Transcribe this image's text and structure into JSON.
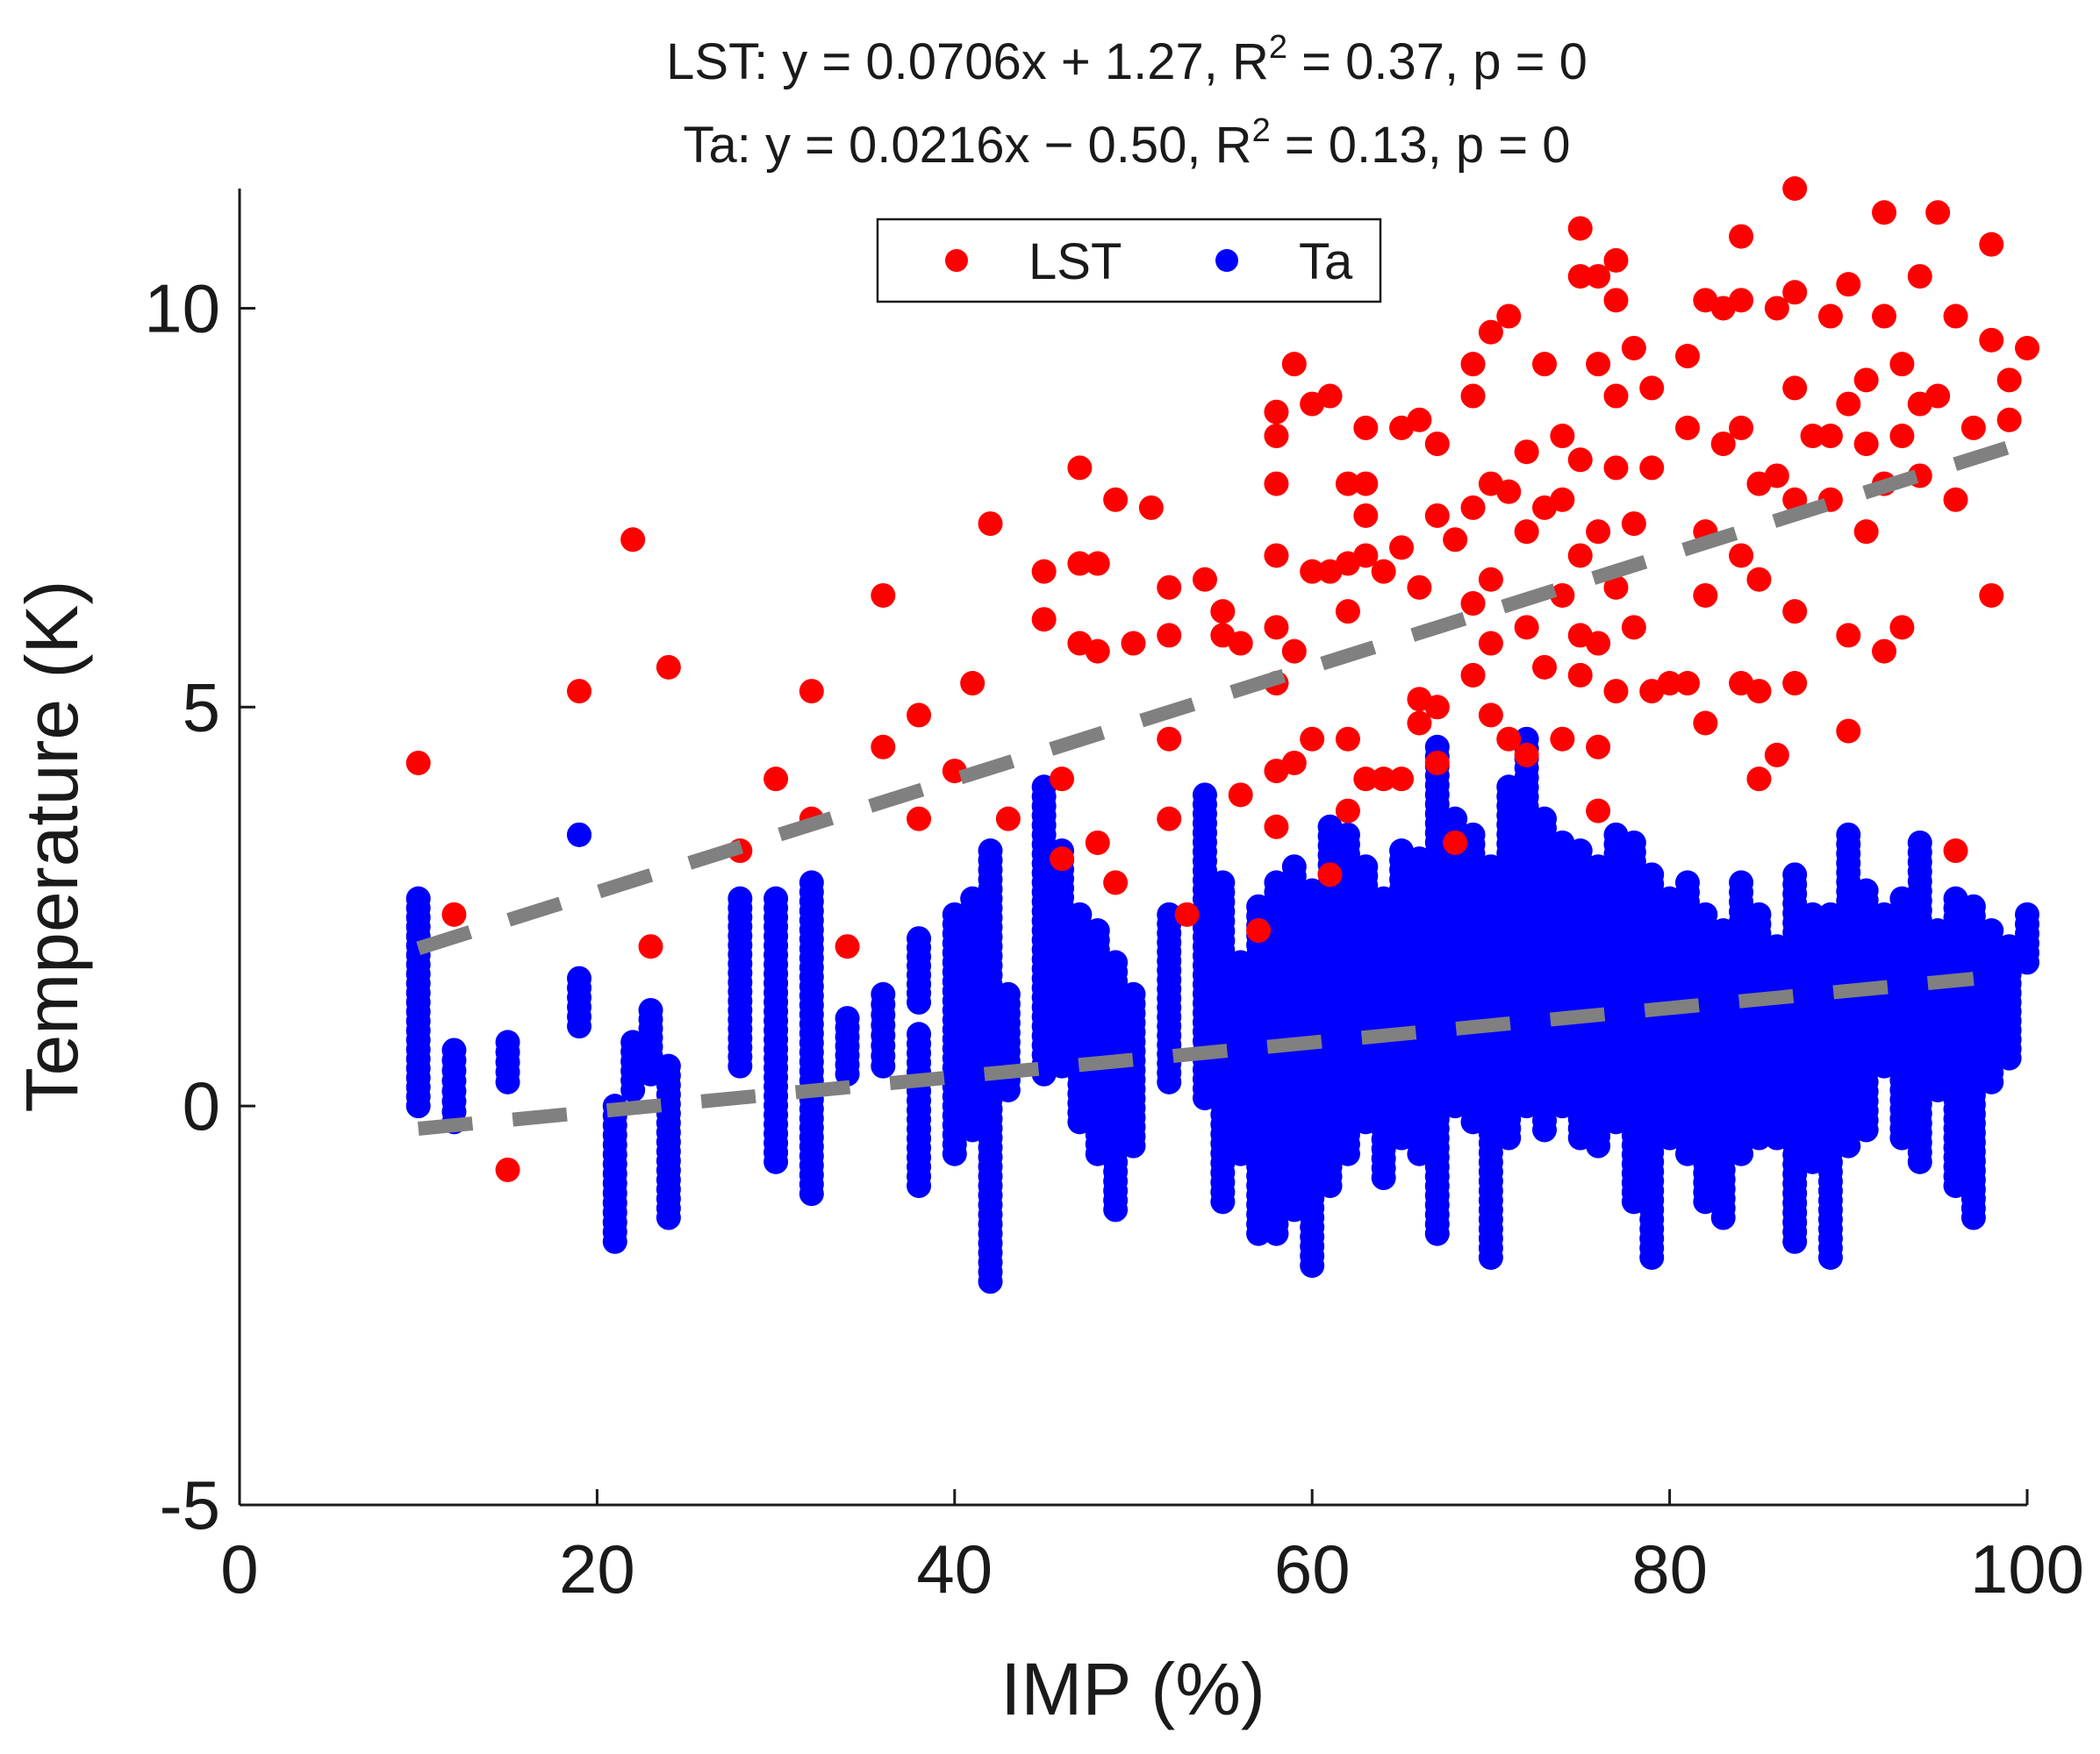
{
  "chart_data": {
    "type": "scatter",
    "title": [
      {
        "prefix": "LST: y = 0.0706x + 1.27, R",
        "sup": "2",
        "suffix": " = 0.37, p = 0"
      },
      {
        "prefix": "Ta: y = 0.0216x − 0.50, R",
        "sup": "2",
        "suffix": " = 0.13, p = 0"
      }
    ],
    "xlabel": "IMP (%)",
    "ylabel": "Temperature (K)",
    "xlim": [
      0,
      100
    ],
    "ylim": [
      -5,
      11.5
    ],
    "xticks": [
      0,
      20,
      40,
      60,
      80,
      100
    ],
    "xtick_labels": [
      "0",
      "20",
      "40",
      "60",
      "80",
      "100"
    ],
    "yticks": [
      -5,
      0,
      5,
      10
    ],
    "ytick_labels": [
      "-5",
      "0",
      "5",
      "10"
    ],
    "legend_position": "top-center",
    "series": [
      {
        "name": "LST",
        "color": "#ff0000",
        "points": [
          [
            10,
            4.3
          ],
          [
            12,
            2.4
          ],
          [
            15,
            -0.8
          ],
          [
            19,
            5.2
          ],
          [
            22,
            7.1
          ],
          [
            23,
            2.0
          ],
          [
            24,
            5.5
          ],
          [
            28,
            3.2
          ],
          [
            30,
            4.1
          ],
          [
            32,
            5.2
          ],
          [
            32,
            3.6
          ],
          [
            34,
            2.0
          ],
          [
            36,
            6.4
          ],
          [
            36,
            4.5
          ],
          [
            38,
            4.9
          ],
          [
            38,
            3.6
          ],
          [
            40,
            4.2
          ],
          [
            41,
            5.3
          ],
          [
            42,
            7.3
          ],
          [
            43,
            3.6
          ],
          [
            45,
            6.7
          ],
          [
            45,
            6.1
          ],
          [
            46,
            4.1
          ],
          [
            46,
            3.1
          ],
          [
            47,
            8.0
          ],
          [
            47,
            5.8
          ],
          [
            47,
            6.8
          ],
          [
            48,
            6.8
          ],
          [
            48,
            5.7
          ],
          [
            48,
            3.3
          ],
          [
            49,
            7.6
          ],
          [
            49,
            2.8
          ],
          [
            50,
            5.8
          ],
          [
            51,
            7.5
          ],
          [
            52,
            6.5
          ],
          [
            52,
            5.9
          ],
          [
            52,
            4.6
          ],
          [
            52,
            3.6
          ],
          [
            53,
            2.4
          ],
          [
            54,
            6.6
          ],
          [
            55,
            6.2
          ],
          [
            55,
            5.9
          ],
          [
            56,
            5.8
          ],
          [
            56,
            3.9
          ],
          [
            57,
            2.2
          ],
          [
            58,
            8.7
          ],
          [
            58,
            8.4
          ],
          [
            58,
            7.8
          ],
          [
            58,
            6.9
          ],
          [
            58,
            6.0
          ],
          [
            58,
            5.3
          ],
          [
            58,
            4.2
          ],
          [
            58,
            3.5
          ],
          [
            59,
            9.3
          ],
          [
            59,
            5.7
          ],
          [
            59,
            4.3
          ],
          [
            60,
            8.8
          ],
          [
            60,
            6.7
          ],
          [
            60,
            4.6
          ],
          [
            61,
            8.9
          ],
          [
            61,
            6.7
          ],
          [
            61,
            2.9
          ],
          [
            62,
            7.8
          ],
          [
            62,
            6.8
          ],
          [
            62,
            6.2
          ],
          [
            62,
            4.6
          ],
          [
            62,
            3.7
          ],
          [
            63,
            8.5
          ],
          [
            63,
            7.8
          ],
          [
            63,
            7.4
          ],
          [
            63,
            6.9
          ],
          [
            63,
            4.1
          ],
          [
            64,
            6.7
          ],
          [
            64,
            4.1
          ],
          [
            65,
            8.5
          ],
          [
            65,
            7.0
          ],
          [
            65,
            4.1
          ],
          [
            66,
            8.6
          ],
          [
            66,
            6.5
          ],
          [
            66,
            5.1
          ],
          [
            66,
            4.8
          ],
          [
            67,
            8.3
          ],
          [
            67,
            7.4
          ],
          [
            67,
            5.0
          ],
          [
            67,
            4.3
          ],
          [
            68,
            7.1
          ],
          [
            68,
            3.3
          ],
          [
            69,
            9.3
          ],
          [
            69,
            8.9
          ],
          [
            69,
            7.5
          ],
          [
            69,
            6.3
          ],
          [
            69,
            5.4
          ],
          [
            70,
            9.7
          ],
          [
            70,
            7.8
          ],
          [
            70,
            6.6
          ],
          [
            70,
            5.8
          ],
          [
            70,
            4.9
          ],
          [
            71,
            9.9
          ],
          [
            71,
            7.7
          ],
          [
            71,
            4.6
          ],
          [
            72,
            8.2
          ],
          [
            72,
            7.2
          ],
          [
            72,
            6.0
          ],
          [
            72,
            4.4
          ],
          [
            73,
            9.3
          ],
          [
            73,
            7.5
          ],
          [
            73,
            5.5
          ],
          [
            74,
            8.4
          ],
          [
            74,
            7.6
          ],
          [
            74,
            6.4
          ],
          [
            74,
            4.6
          ],
          [
            75,
            11.0
          ],
          [
            75,
            10.4
          ],
          [
            75,
            8.1
          ],
          [
            75,
            6.9
          ],
          [
            75,
            5.9
          ],
          [
            75,
            5.4
          ],
          [
            76,
            10.4
          ],
          [
            76,
            9.3
          ],
          [
            76,
            7.2
          ],
          [
            76,
            5.8
          ],
          [
            76,
            4.5
          ],
          [
            76,
            3.7
          ],
          [
            77,
            10.6
          ],
          [
            77,
            10.1
          ],
          [
            77,
            8.9
          ],
          [
            77,
            8.0
          ],
          [
            77,
            6.5
          ],
          [
            77,
            5.2
          ],
          [
            78,
            9.5
          ],
          [
            78,
            7.3
          ],
          [
            78,
            6.0
          ],
          [
            79,
            9.0
          ],
          [
            79,
            8.0
          ],
          [
            79,
            5.2
          ],
          [
            80,
            5.3
          ],
          [
            81,
            9.4
          ],
          [
            81,
            8.5
          ],
          [
            81,
            5.3
          ],
          [
            82,
            10.1
          ],
          [
            82,
            7.2
          ],
          [
            82,
            6.4
          ],
          [
            82,
            4.8
          ],
          [
            83,
            10.0
          ],
          [
            83,
            8.3
          ],
          [
            84,
            10.9
          ],
          [
            84,
            10.1
          ],
          [
            84,
            8.5
          ],
          [
            84,
            6.9
          ],
          [
            84,
            5.3
          ],
          [
            85,
            7.8
          ],
          [
            85,
            6.6
          ],
          [
            85,
            5.2
          ],
          [
            85,
            4.1
          ],
          [
            86,
            10.0
          ],
          [
            86,
            7.9
          ],
          [
            86,
            4.4
          ],
          [
            87,
            11.5
          ],
          [
            87,
            10.2
          ],
          [
            87,
            9.0
          ],
          [
            87,
            7.6
          ],
          [
            87,
            6.2
          ],
          [
            87,
            5.3
          ],
          [
            88,
            8.4
          ],
          [
            89,
            9.9
          ],
          [
            89,
            8.4
          ],
          [
            89,
            7.6
          ],
          [
            90,
            10.3
          ],
          [
            90,
            8.8
          ],
          [
            90,
            5.9
          ],
          [
            90,
            4.7
          ],
          [
            91,
            9.1
          ],
          [
            91,
            8.3
          ],
          [
            91,
            7.2
          ],
          [
            92,
            11.2
          ],
          [
            92,
            9.9
          ],
          [
            92,
            7.8
          ],
          [
            92,
            5.7
          ],
          [
            93,
            9.3
          ],
          [
            93,
            8.4
          ],
          [
            93,
            6.0
          ],
          [
            94,
            10.4
          ],
          [
            94,
            8.8
          ],
          [
            94,
            7.9
          ],
          [
            95,
            11.2
          ],
          [
            95,
            8.9
          ],
          [
            96,
            9.9
          ],
          [
            96,
            7.6
          ],
          [
            96,
            3.2
          ],
          [
            97,
            8.5
          ],
          [
            98,
            10.8
          ],
          [
            98,
            9.6
          ],
          [
            98,
            6.4
          ],
          [
            99,
            9.1
          ],
          [
            99,
            8.6
          ],
          [
            100,
            9.5
          ]
        ]
      },
      {
        "name": "Ta",
        "color": "#0000ff",
        "point_columns": [
          [
            10,
            0.0,
            2.6
          ],
          [
            12,
            -0.2,
            0.7
          ],
          [
            15,
            0.3,
            0.8
          ],
          [
            19,
            1.0,
            1.6
          ],
          [
            19,
            3.4,
            3.4
          ],
          [
            21,
            -1.7,
            0.0
          ],
          [
            22,
            0.2,
            0.8
          ],
          [
            23,
            0.4,
            1.2
          ],
          [
            24,
            -1.4,
            0.5
          ],
          [
            28,
            0.5,
            2.6
          ],
          [
            30,
            -0.7,
            2.6
          ],
          [
            32,
            -1.1,
            2.8
          ],
          [
            34,
            0.4,
            1.1
          ],
          [
            36,
            0.5,
            1.4
          ],
          [
            38,
            -1.0,
            0.9
          ],
          [
            38,
            1.3,
            2.1
          ],
          [
            40,
            -0.6,
            2.4
          ],
          [
            41,
            -0.3,
            2.6
          ],
          [
            42,
            -2.2,
            3.2
          ],
          [
            43,
            0.2,
            1.4
          ],
          [
            45,
            0.4,
            4.0
          ],
          [
            46,
            0.5,
            3.2
          ],
          [
            47,
            -0.2,
            2.4
          ],
          [
            48,
            -0.6,
            2.2
          ],
          [
            49,
            -1.3,
            1.8
          ],
          [
            50,
            -0.5,
            1.4
          ],
          [
            52,
            0.3,
            2.4
          ],
          [
            54,
            0.1,
            3.9
          ],
          [
            55,
            -1.2,
            2.8
          ],
          [
            56,
            -0.6,
            1.8
          ],
          [
            57,
            -1.6,
            2.5
          ],
          [
            58,
            -1.6,
            2.8
          ],
          [
            59,
            -1.3,
            3.0
          ],
          [
            60,
            -2.0,
            2.7
          ],
          [
            61,
            -1.0,
            3.5
          ],
          [
            62,
            -0.6,
            3.4
          ],
          [
            63,
            -0.2,
            3.0
          ],
          [
            64,
            -0.9,
            2.6
          ],
          [
            65,
            -0.4,
            3.2
          ],
          [
            66,
            -0.6,
            3.1
          ],
          [
            67,
            -1.6,
            4.5
          ],
          [
            68,
            0.0,
            3.6
          ],
          [
            69,
            -0.2,
            3.4
          ],
          [
            70,
            -1.9,
            3.0
          ],
          [
            71,
            -0.4,
            4.0
          ],
          [
            72,
            0.0,
            4.6
          ],
          [
            73,
            -0.3,
            3.6
          ],
          [
            74,
            0.0,
            3.3
          ],
          [
            75,
            -0.4,
            3.2
          ],
          [
            76,
            -0.5,
            3.0
          ],
          [
            77,
            -0.2,
            3.4
          ],
          [
            78,
            -1.2,
            3.3
          ],
          [
            79,
            -1.9,
            2.9
          ],
          [
            80,
            -0.4,
            2.6
          ],
          [
            81,
            -0.6,
            2.8
          ],
          [
            82,
            -1.2,
            2.4
          ],
          [
            83,
            -1.4,
            2.2
          ],
          [
            84,
            -0.6,
            2.8
          ],
          [
            85,
            -0.4,
            2.4
          ],
          [
            86,
            -0.4,
            2.0
          ],
          [
            87,
            -1.7,
            2.9
          ],
          [
            88,
            -0.7,
            2.4
          ],
          [
            89,
            -1.9,
            2.4
          ],
          [
            90,
            -0.5,
            3.4
          ],
          [
            91,
            -0.3,
            2.7
          ],
          [
            92,
            0.5,
            2.4
          ],
          [
            93,
            -0.4,
            2.6
          ],
          [
            94,
            -0.7,
            3.3
          ],
          [
            95,
            0.2,
            2.2
          ],
          [
            96,
            -1.0,
            2.6
          ],
          [
            97,
            -1.4,
            2.5
          ],
          [
            98,
            0.3,
            2.2
          ],
          [
            99,
            0.6,
            2.0
          ],
          [
            100,
            1.8,
            2.4
          ]
        ]
      }
    ],
    "fit_lines": [
      {
        "name": "LST fit",
        "slope": 0.0706,
        "intercept": 1.27,
        "x_range": [
          10,
          100
        ],
        "color": "#808080",
        "style": "dashed"
      },
      {
        "name": "Ta fit",
        "slope": 0.0216,
        "intercept": -0.5,
        "x_range": [
          10,
          97
        ],
        "color": "#808080",
        "style": "dashed"
      }
    ],
    "legend": [
      {
        "label": "LST",
        "color": "#ff0000"
      },
      {
        "label": "Ta",
        "color": "#0000ff"
      }
    ]
  }
}
